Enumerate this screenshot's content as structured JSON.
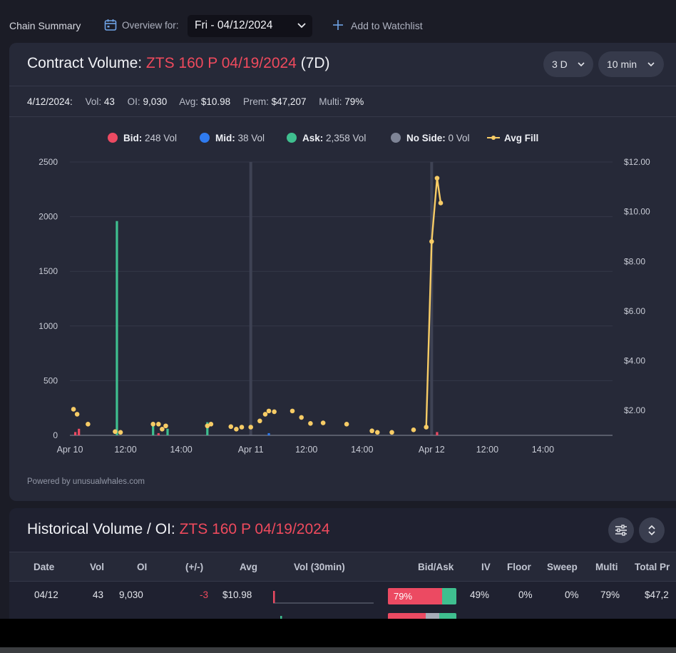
{
  "topbar": {
    "chain_summary": "Chain Summary",
    "overview_label": "Overview for:",
    "selected_date": "Fri - 04/12/2024",
    "watchlist_label": "Add to Watchlist"
  },
  "volume_card": {
    "title_prefix": "Contract Volume: ",
    "contract": "ZTS 160 P 04/19/2024",
    "range_suffix": " (7D)",
    "range_select": "3 D",
    "interval_select": "10 min",
    "stats": {
      "date": "4/12/2024:",
      "vol_label": "Vol:",
      "vol": "43",
      "oi_label": "OI:",
      "oi": "9,030",
      "avg_label": "Avg:",
      "avg": "$10.98",
      "prem_label": "Prem:",
      "prem": "$47,207",
      "multi_label": "Multi:",
      "multi": "79%"
    },
    "powered_by": "Powered by unusualwhales.com"
  },
  "colors": {
    "bid": "#ec4a62",
    "mid": "#2f7bf0",
    "ask": "#3fbf8f",
    "noside": "#7e8496",
    "avgfill": "#f7cc66",
    "accent_red": "#ef4a5d"
  },
  "chart_data": {
    "type": "bar",
    "legend": [
      {
        "name": "Bid:",
        "value": "248 Vol",
        "color": "#ec4a62"
      },
      {
        "name": "Mid:",
        "value": "38 Vol",
        "color": "#2f7bf0"
      },
      {
        "name": "Ask:",
        "value": "2,358 Vol",
        "color": "#3fbf8f"
      },
      {
        "name": "No Side:",
        "value": "0 Vol",
        "color": "#7e8496"
      },
      {
        "name": "Avg Fill",
        "value": "",
        "color": "#f7cc66"
      }
    ],
    "y_left": {
      "min": 0,
      "max": 2500,
      "ticks": [
        0,
        500,
        1000,
        1500,
        2000,
        2500
      ]
    },
    "y_right": {
      "min": 1,
      "max": 12,
      "ticks": [
        2,
        4,
        6,
        8,
        10,
        12
      ],
      "tick_labels": [
        "$2.00",
        "$4.00",
        "$6.00",
        "$8.00",
        "$10.00",
        "$12.00"
      ]
    },
    "x_range": [
      0,
      3
    ],
    "x_ticks": [
      {
        "t": 0.0,
        "label": "Apr 10"
      },
      {
        "t": 0.3077,
        "label": "12:00"
      },
      {
        "t": 0.6154,
        "label": "14:00"
      },
      {
        "t": 1.0,
        "label": "Apr 11"
      },
      {
        "t": 1.3077,
        "label": "12:00"
      },
      {
        "t": 1.6154,
        "label": "14:00"
      },
      {
        "t": 2.0,
        "label": "Apr 12"
      },
      {
        "t": 2.3077,
        "label": "12:00"
      },
      {
        "t": 2.6154,
        "label": "14:00"
      }
    ],
    "day_separators": [
      1.0,
      2.0
    ],
    "bars": [
      {
        "t": 0.03,
        "side": "bid",
        "value": 30
      },
      {
        "t": 0.05,
        "side": "bid",
        "value": 60
      },
      {
        "t": 0.26,
        "side": "ask",
        "value": 1960
      },
      {
        "t": 0.46,
        "side": "ask",
        "value": 90
      },
      {
        "t": 0.49,
        "side": "bid",
        "value": 20
      },
      {
        "t": 0.54,
        "side": "ask",
        "value": 60
      },
      {
        "t": 0.76,
        "side": "ask",
        "value": 120
      },
      {
        "t": 1.1,
        "side": "mid",
        "value": 20
      },
      {
        "t": 2.03,
        "side": "bid",
        "value": 30
      }
    ],
    "avg_fill_points": [
      {
        "t": 0.02,
        "v": 2.05
      },
      {
        "t": 0.04,
        "v": 1.85
      },
      {
        "t": 0.1,
        "v": 1.45
      },
      {
        "t": 0.25,
        "v": 1.15
      },
      {
        "t": 0.28,
        "v": 1.12
      },
      {
        "t": 0.46,
        "v": 1.45
      },
      {
        "t": 0.49,
        "v": 1.45
      },
      {
        "t": 0.51,
        "v": 1.25
      },
      {
        "t": 0.53,
        "v": 1.38
      },
      {
        "t": 0.76,
        "v": 1.38
      },
      {
        "t": 0.78,
        "v": 1.45
      },
      {
        "t": 0.89,
        "v": 1.35
      },
      {
        "t": 0.92,
        "v": 1.25
      },
      {
        "t": 0.95,
        "v": 1.33
      },
      {
        "t": 1.0,
        "v": 1.33
      },
      {
        "t": 1.05,
        "v": 1.58
      },
      {
        "t": 1.08,
        "v": 1.85
      },
      {
        "t": 1.1,
        "v": 1.98
      },
      {
        "t": 1.13,
        "v": 1.95
      },
      {
        "t": 1.23,
        "v": 1.98
      },
      {
        "t": 1.28,
        "v": 1.72
      },
      {
        "t": 1.33,
        "v": 1.48
      },
      {
        "t": 1.4,
        "v": 1.5
      },
      {
        "t": 1.53,
        "v": 1.45
      },
      {
        "t": 1.67,
        "v": 1.18
      },
      {
        "t": 1.7,
        "v": 1.12
      },
      {
        "t": 1.78,
        "v": 1.12
      },
      {
        "t": 1.9,
        "v": 1.22
      }
    ],
    "avg_fill_line": [
      {
        "t": 1.97,
        "v": 1.33
      },
      {
        "t": 2.0,
        "v": 8.8
      },
      {
        "t": 2.03,
        "v": 11.35
      },
      {
        "t": 2.05,
        "v": 10.35
      }
    ]
  },
  "history_card": {
    "title_prefix": "Historical Volume / OI: ",
    "contract": "ZTS 160 P 04/19/2024",
    "columns": [
      "Date",
      "Vol",
      "OI",
      "(+/-)",
      "Avg",
      "Vol (30min)",
      "Bid/Ask",
      "IV",
      "Floor",
      "Sweep",
      "Multi",
      "Total Pr"
    ],
    "rows": [
      {
        "date": "04/12",
        "vol": "43",
        "oi": "9,030",
        "change": "-3",
        "avg": "$10.98",
        "bid_ask_label": "79%",
        "bid_pct": 79,
        "mid_pct": 0,
        "ask_pct": 21,
        "iv": "49%",
        "floor": "0%",
        "sweep": "0%",
        "multi": "79%",
        "total_prem": "$47,2"
      },
      {
        "bid_pct": 55,
        "mid_pct": 20,
        "ask_pct": 25
      }
    ]
  }
}
